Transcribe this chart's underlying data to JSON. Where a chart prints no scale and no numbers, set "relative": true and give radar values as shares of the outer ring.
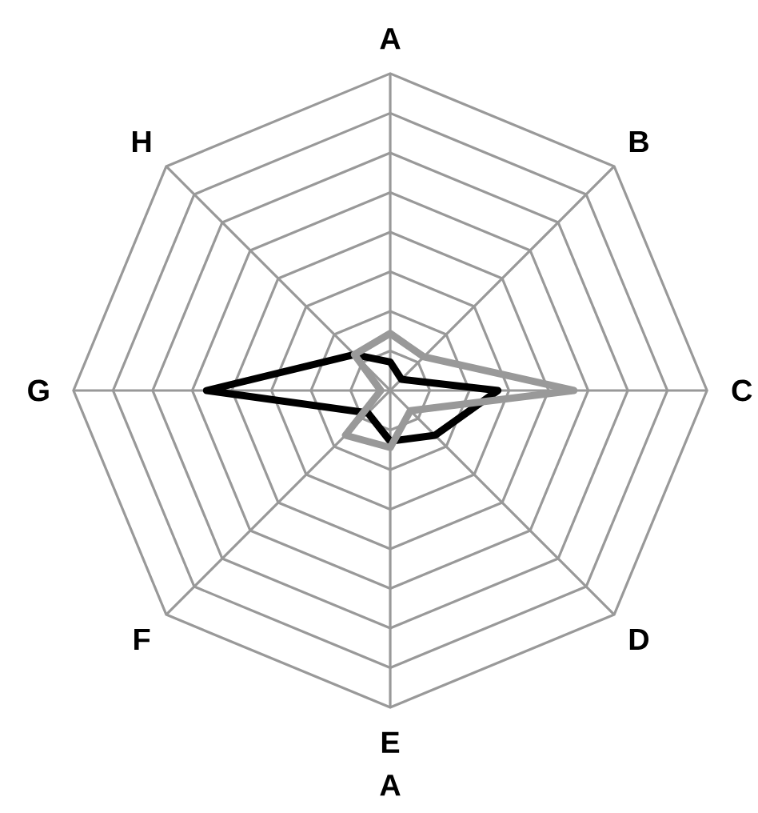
{
  "chart_data": {
    "type": "radar",
    "categories": [
      "A",
      "B",
      "C",
      "D",
      "E",
      "F",
      "G",
      "H"
    ],
    "relative": true,
    "grid": true,
    "series": [
      {
        "color": "#000000",
        "values": [
          0.09,
          0.05,
          0.34,
          0.2,
          0.16,
          0.1,
          0.58,
          0.16
        ]
      },
      {
        "color": "#999999",
        "values": [
          0.18,
          0.15,
          0.58,
          0.09,
          0.18,
          0.2,
          0.03,
          0.16
        ]
      }
    ],
    "annotations": [
      "A"
    ]
  }
}
